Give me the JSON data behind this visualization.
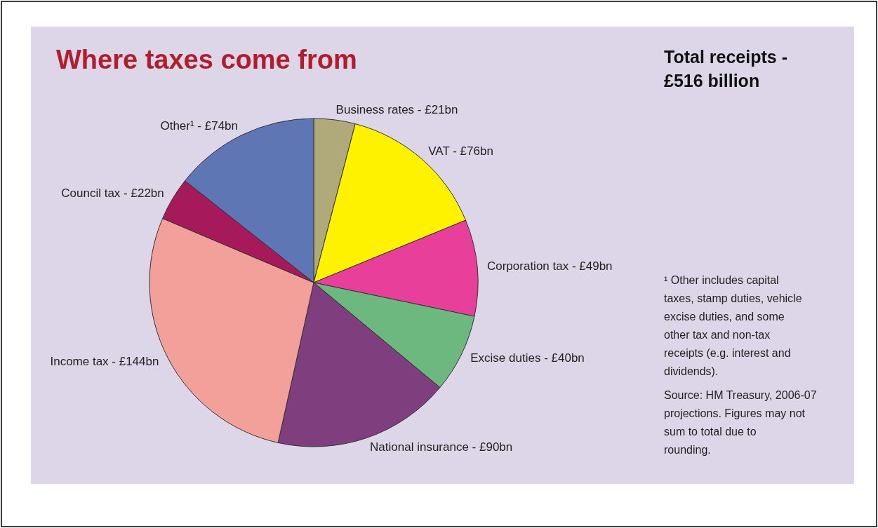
{
  "chart_data": {
    "type": "pie",
    "title": "Where taxes come from",
    "subtitle": "Total receipts - £516 billion",
    "categories": [
      "Business rates",
      "VAT",
      "Corporation tax",
      "Excise duties",
      "National insurance",
      "Income tax",
      "Council tax",
      "Other¹"
    ],
    "values": [
      21,
      76,
      49,
      40,
      90,
      144,
      22,
      74
    ],
    "value_labels": [
      "£21bn",
      "£76bn",
      "£49bn",
      "£40bn",
      "£90bn",
      "£144bn",
      "£22bn",
      "£74bn"
    ],
    "colors": [
      "#b0aa7a",
      "#fff200",
      "#e8409a",
      "#6cb87e",
      "#7f3f7f",
      "#f4a09a",
      "#a6195a",
      "#5f76b4"
    ],
    "annotations": [
      "¹ Other includes capital taxes, stamp duties, vehicle excise duties, and some other tax and non-tax receipts (e.g. interest and dividends).",
      "Source: HM Treasury, 2006-07 projections. Figures may not sum to total due to rounding."
    ]
  }
}
